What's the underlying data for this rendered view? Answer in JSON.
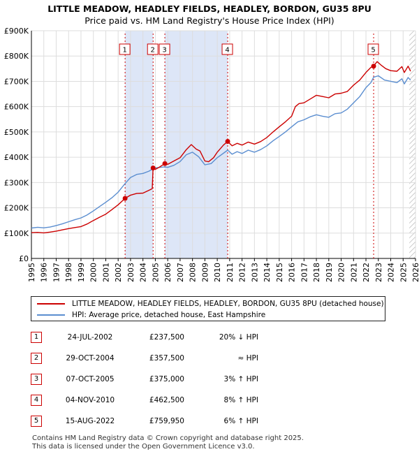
{
  "title": {
    "line1": "LITTLE MEADOW, HEADLEY FIELDS, HEADLEY, BORDON, GU35 8PU",
    "line2": "Price paid vs. HM Land Registry's House Price Index (HPI)"
  },
  "chart_data": {
    "type": "line",
    "title": "LITTLE MEADOW, HEADLEY FIELDS, HEADLEY, BORDON, GU35 8PU",
    "subtitle": "Price paid vs. HM Land Registry's House Price Index (HPI)",
    "xlim": [
      1995,
      2026
    ],
    "ylim": [
      0,
      900000
    ],
    "x_ticks": [
      "1995",
      "1996",
      "1997",
      "1998",
      "1999",
      "2000",
      "2001",
      "2002",
      "2003",
      "2004",
      "2005",
      "2006",
      "2007",
      "2008",
      "2009",
      "2010",
      "2011",
      "2012",
      "2013",
      "2014",
      "2015",
      "2016",
      "2017",
      "2018",
      "2019",
      "2020",
      "2021",
      "2022",
      "2023",
      "2024",
      "2025",
      "2026"
    ],
    "y_ticks": [
      {
        "value": 0,
        "label": "£0"
      },
      {
        "value": 100000,
        "label": "£100K"
      },
      {
        "value": 200000,
        "label": "£200K"
      },
      {
        "value": 300000,
        "label": "£300K"
      },
      {
        "value": 400000,
        "label": "£400K"
      },
      {
        "value": 500000,
        "label": "£500K"
      },
      {
        "value": 600000,
        "label": "£600K"
      },
      {
        "value": 700000,
        "label": "£700K"
      },
      {
        "value": 800000,
        "label": "£800K"
      },
      {
        "value": 900000,
        "label": "£900K"
      }
    ],
    "colors": {
      "property": "#cc0000",
      "hpi": "#5b8ed0",
      "shade": "#dde6f7",
      "hatch": "#bbbbbb",
      "grid": "#dddddd"
    },
    "series": [
      {
        "name": "LITTLE MEADOW, HEADLEY FIELDS, HEADLEY, BORDON, GU35 8PU (detached house)",
        "color": "#cc0000",
        "points": [
          [
            1995.0,
            102000
          ],
          [
            1995.5,
            103000
          ],
          [
            1996.0,
            101000
          ],
          [
            1996.5,
            104000
          ],
          [
            1997.0,
            108000
          ],
          [
            1997.5,
            113000
          ],
          [
            1998.0,
            118000
          ],
          [
            1998.5,
            122000
          ],
          [
            1999.0,
            126000
          ],
          [
            1999.5,
            136000
          ],
          [
            2000.0,
            150000
          ],
          [
            2000.5,
            163000
          ],
          [
            2001.0,
            175000
          ],
          [
            2001.5,
            193000
          ],
          [
            2002.0,
            212000
          ],
          [
            2002.56,
            237500
          ],
          [
            2003.0,
            250000
          ],
          [
            2003.5,
            257000
          ],
          [
            2004.0,
            258000
          ],
          [
            2004.6,
            272000
          ],
          [
            2004.75,
            276000
          ],
          [
            2004.82,
            357500
          ],
          [
            2005.0,
            352000
          ],
          [
            2005.3,
            360000
          ],
          [
            2005.77,
            375000
          ],
          [
            2006.0,
            372000
          ],
          [
            2006.5,
            385000
          ],
          [
            2007.0,
            398000
          ],
          [
            2007.5,
            430000
          ],
          [
            2007.9,
            450000
          ],
          [
            2008.3,
            432000
          ],
          [
            2008.6,
            425000
          ],
          [
            2009.0,
            385000
          ],
          [
            2009.3,
            382000
          ],
          [
            2009.7,
            398000
          ],
          [
            2010.0,
            420000
          ],
          [
            2010.5,
            448000
          ],
          [
            2010.84,
            462500
          ],
          [
            2011.2,
            445000
          ],
          [
            2011.6,
            455000
          ],
          [
            2012.0,
            448000
          ],
          [
            2012.5,
            460000
          ],
          [
            2013.0,
            452000
          ],
          [
            2013.5,
            462000
          ],
          [
            2014.0,
            478000
          ],
          [
            2014.5,
            500000
          ],
          [
            2015.0,
            520000
          ],
          [
            2015.5,
            540000
          ],
          [
            2016.0,
            562000
          ],
          [
            2016.3,
            600000
          ],
          [
            2016.6,
            612000
          ],
          [
            2017.0,
            615000
          ],
          [
            2017.5,
            630000
          ],
          [
            2018.0,
            645000
          ],
          [
            2018.5,
            640000
          ],
          [
            2019.0,
            635000
          ],
          [
            2019.5,
            650000
          ],
          [
            2020.0,
            653000
          ],
          [
            2020.5,
            660000
          ],
          [
            2021.0,
            685000
          ],
          [
            2021.5,
            705000
          ],
          [
            2022.0,
            735000
          ],
          [
            2022.4,
            755000
          ],
          [
            2022.62,
            759950
          ],
          [
            2022.9,
            778000
          ],
          [
            2023.2,
            765000
          ],
          [
            2023.6,
            750000
          ],
          [
            2024.0,
            742000
          ],
          [
            2024.5,
            740000
          ],
          [
            2024.9,
            758000
          ],
          [
            2025.1,
            735000
          ],
          [
            2025.4,
            760000
          ],
          [
            2025.6,
            740000
          ]
        ]
      },
      {
        "name": "HPI: Average price, detached house, East Hampshire",
        "color": "#5b8ed0",
        "points": [
          [
            1995.0,
            120000
          ],
          [
            1995.5,
            123000
          ],
          [
            1996.0,
            121000
          ],
          [
            1996.5,
            124000
          ],
          [
            1997.0,
            130000
          ],
          [
            1997.5,
            137000
          ],
          [
            1998.0,
            145000
          ],
          [
            1998.5,
            153000
          ],
          [
            1999.0,
            160000
          ],
          [
            1999.5,
            172000
          ],
          [
            2000.0,
            188000
          ],
          [
            2000.5,
            205000
          ],
          [
            2001.0,
            222000
          ],
          [
            2001.5,
            240000
          ],
          [
            2002.0,
            262000
          ],
          [
            2002.56,
            296000
          ],
          [
            2003.0,
            320000
          ],
          [
            2003.5,
            332000
          ],
          [
            2004.0,
            336000
          ],
          [
            2004.5,
            345000
          ],
          [
            2004.82,
            355000
          ],
          [
            2005.0,
            358000
          ],
          [
            2005.77,
            362000
          ],
          [
            2006.0,
            360000
          ],
          [
            2006.5,
            368000
          ],
          [
            2007.0,
            383000
          ],
          [
            2007.5,
            410000
          ],
          [
            2008.0,
            420000
          ],
          [
            2008.5,
            402000
          ],
          [
            2009.0,
            370000
          ],
          [
            2009.5,
            375000
          ],
          [
            2010.0,
            398000
          ],
          [
            2010.84,
            428000
          ],
          [
            2011.2,
            412000
          ],
          [
            2011.6,
            422000
          ],
          [
            2012.0,
            415000
          ],
          [
            2012.5,
            428000
          ],
          [
            2013.0,
            420000
          ],
          [
            2013.5,
            430000
          ],
          [
            2014.0,
            445000
          ],
          [
            2014.5,
            465000
          ],
          [
            2015.0,
            482000
          ],
          [
            2015.5,
            500000
          ],
          [
            2016.0,
            520000
          ],
          [
            2016.5,
            540000
          ],
          [
            2017.0,
            548000
          ],
          [
            2017.5,
            560000
          ],
          [
            2018.0,
            568000
          ],
          [
            2018.5,
            562000
          ],
          [
            2019.0,
            558000
          ],
          [
            2019.5,
            572000
          ],
          [
            2020.0,
            575000
          ],
          [
            2020.5,
            590000
          ],
          [
            2021.0,
            615000
          ],
          [
            2021.5,
            640000
          ],
          [
            2022.0,
            675000
          ],
          [
            2022.4,
            695000
          ],
          [
            2022.62,
            716000
          ],
          [
            2023.0,
            722000
          ],
          [
            2023.5,
            705000
          ],
          [
            2024.0,
            700000
          ],
          [
            2024.5,
            695000
          ],
          [
            2024.9,
            710000
          ],
          [
            2025.1,
            690000
          ],
          [
            2025.4,
            715000
          ],
          [
            2025.6,
            705000
          ]
        ]
      }
    ],
    "shaded_ranges": [
      [
        2002.56,
        2004.82
      ],
      [
        2005.77,
        2010.84
      ]
    ],
    "hatched_range": [
      2025.5,
      2026
    ],
    "sales": [
      {
        "num": "1",
        "x": 2002.56,
        "price_value": 237500
      },
      {
        "num": "2",
        "x": 2004.82,
        "price_value": 357500
      },
      {
        "num": "3",
        "x": 2005.77,
        "price_value": 375000
      },
      {
        "num": "4",
        "x": 2010.84,
        "price_value": 462500
      },
      {
        "num": "5",
        "x": 2022.62,
        "price_value": 759950
      }
    ]
  },
  "legend": {
    "property_label": "LITTLE MEADOW, HEADLEY FIELDS, HEADLEY, BORDON, GU35 8PU (detached house)",
    "hpi_label": "HPI: Average price, detached house, East Hampshire"
  },
  "sales_table": [
    {
      "num": "1",
      "date": "24-JUL-2002",
      "price": "£237,500",
      "hpi": "20% ↓ HPI"
    },
    {
      "num": "2",
      "date": "29-OCT-2004",
      "price": "£357,500",
      "hpi": "≈ HPI"
    },
    {
      "num": "3",
      "date": "07-OCT-2005",
      "price": "£375,000",
      "hpi": "3% ↑ HPI"
    },
    {
      "num": "4",
      "date": "04-NOV-2010",
      "price": "£462,500",
      "hpi": "8% ↑ HPI"
    },
    {
      "num": "5",
      "date": "15-AUG-2022",
      "price": "£759,950",
      "hpi": "6% ↑ HPI"
    }
  ],
  "footer": {
    "line1": "Contains HM Land Registry data © Crown copyright and database right 2025.",
    "line2": "This data is licensed under the Open Government Licence v3.0."
  }
}
